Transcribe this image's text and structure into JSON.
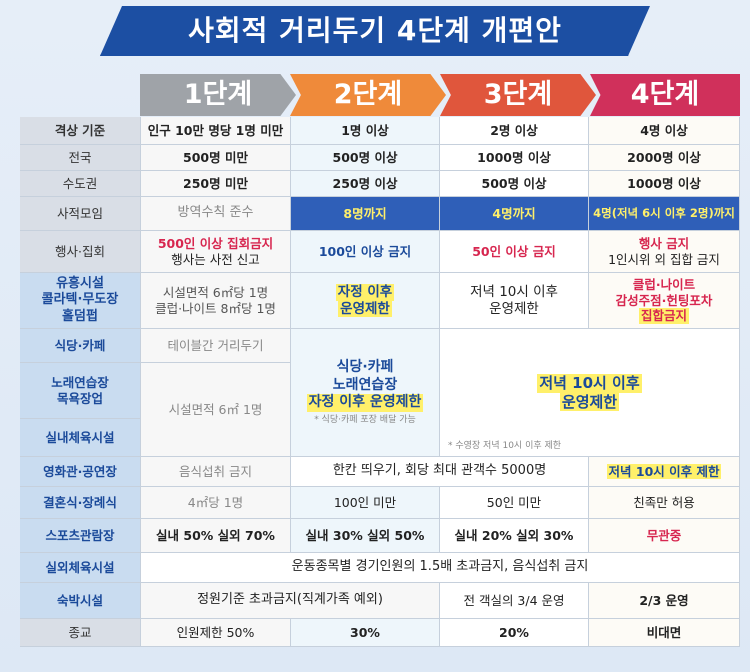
{
  "title": "사회적 거리두기 4단계 개편안",
  "stages": [
    "1단계",
    "2단계",
    "3단계",
    "4단계"
  ],
  "rows": {
    "criteria_label": "격상 기준",
    "nation_label": "전국",
    "metro_label": "수도권",
    "criteria": [
      "인구 10만 명당 1명 미만",
      "1명 이상",
      "2명 이상",
      "4명 이상"
    ],
    "nation": [
      "500명 미만",
      "500명 이상",
      "1000명 이상",
      "2000명 이상"
    ],
    "metro": [
      "250명 미만",
      "250명 이상",
      "500명 이상",
      "1000명 이상"
    ],
    "private_label": "사적모임",
    "private": [
      "방역수칙 준수",
      "8명까지",
      "4명까지",
      "4명(저녁 6시 이후 2명)까지"
    ],
    "event_label": "행사·집회",
    "event": [
      "500인 이상 집회금지",
      "행사는 사전 신고",
      "100인 이상 금지",
      "50인 이상 금지",
      "행사 금지",
      "1인시위 외 집합 금지"
    ],
    "nightlife_label": [
      "유흥시설",
      "콜라텍·무도장",
      "홀덤펍"
    ],
    "nightlife": [
      "시설면적 6㎡당 1명",
      "클럽·나이트 8㎡당 1명",
      "자정 이후",
      "운영제한",
      "저녁 10시 이후",
      "운영제한",
      "클럽·나이트",
      "감성주점·헌팅포차",
      "집합금지"
    ],
    "cafe_label": "식당·카페",
    "karaoke_label": [
      "노래연습장",
      "목욕장업"
    ],
    "gym_label": "실내체육시설",
    "cafe_s1": "테이블간 거리두기",
    "gym_s1": "시설면적 6㎡ 1명",
    "s2_merged": [
      "식당·카페",
      "노래연습장",
      "자정 이후 운영제한"
    ],
    "s2_note": "* 식당·카페 포장 배달 가능",
    "s34_merged": [
      "저녁 10시 이후",
      "운영제한"
    ],
    "s34_note": "* 수영장 저녁 10시 이후 제한",
    "cinema_label": "영화관·공연장",
    "cinema": [
      "음식섭취 금지",
      "한칸 띄우기, 회당 최대 관객수 5000명",
      "저녁 10시 이후 제한"
    ],
    "wedding_label": "결혼식·장례식",
    "wedding": [
      "4㎡당 1명",
      "100인 미만",
      "50인 미만",
      "친족만 허용"
    ],
    "sports_label": "스포츠관람장",
    "sports": [
      "실내 50% 실외 70%",
      "실내 30% 실외 50%",
      "실내 20% 실외 30%",
      "무관중"
    ],
    "outdoor_label": "실외체육시설",
    "outdoor": "운동종목별 경기인원의 1.5배 초과금지, 음식섭취 금지",
    "lodging_label": "숙박시설",
    "lodging": [
      "정원기준 초과금지(직계가족 예외)",
      "전 객실의 3/4 운영",
      "2/3 운영"
    ],
    "religion_label": "종교",
    "religion": [
      "인원제한 50%",
      "30%",
      "20%",
      "비대면"
    ]
  }
}
